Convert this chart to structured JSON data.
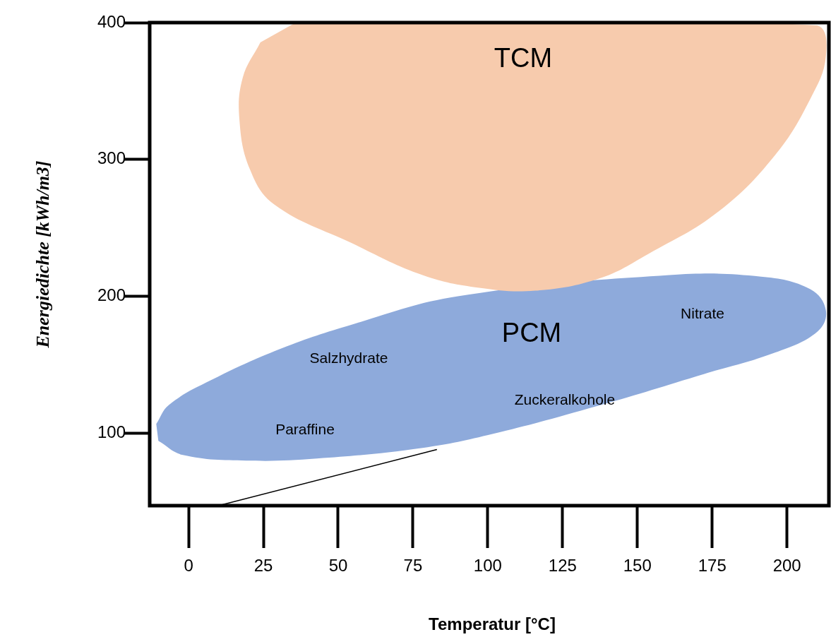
{
  "chart_data": {
    "type": "area",
    "xlabel": "Temperatur [°C]",
    "ylabel": "Energiedichte [kWh/m3]",
    "xlim": [
      -13,
      214
    ],
    "xticks": [
      0,
      25,
      50,
      75,
      100,
      125,
      150,
      175,
      200
    ],
    "ylim": [
      47,
      400
    ],
    "yticks": [
      100,
      200,
      300,
      400
    ],
    "grid": false,
    "legend": false,
    "series": [
      {
        "name": "TCM",
        "color": "#f7cbad",
        "x": [
          35.8,
          101.8,
          172.4,
          210.1,
          213,
          207.8,
          196,
          177.1,
          153.6,
          137.1,
          115.9,
          97.1,
          78.2,
          54.7,
          28.7,
          20.5,
          17,
          18.1,
          24
        ],
        "values": [
          400,
          400,
          400,
          397.9,
          375.3,
          344.3,
          303.1,
          261.9,
          230.9,
          212.9,
          204.1,
          206.2,
          215.5,
          238.7,
          267,
          292.8,
          328.9,
          359.8,
          385.6
        ]
      },
      {
        "name": "PCM",
        "color": "#8eaadb",
        "x": [
          -10.8,
          -6.6,
          7.5,
          31.1,
          54.7,
          90,
          125.3,
          160.7,
          191.3,
          207.8,
          213,
          210.2,
          196,
          172.4,
          137.1,
          101.8,
          78.2,
          42.9,
          19.3,
          -1.9,
          -10.1
        ],
        "values": [
          106.7,
          120.6,
          138.7,
          161.9,
          179.4,
          200,
          null,
          215.5,
          214.4,
          205.2,
          189.7,
          174.2,
          158.8,
          143.3,
          120.1,
          99.5,
          89.2,
          81.4,
          79.9,
          84,
          94.3
        ]
      },
      {
        "type": "line",
        "color": "#000000",
        "x": [
          10,
          83
        ],
        "values": [
          47,
          88
        ]
      }
    ],
    "annotations": [
      "Salzhydrate",
      "Paraffine",
      "Zuckeralkohole",
      "Nitrate"
    ]
  }
}
